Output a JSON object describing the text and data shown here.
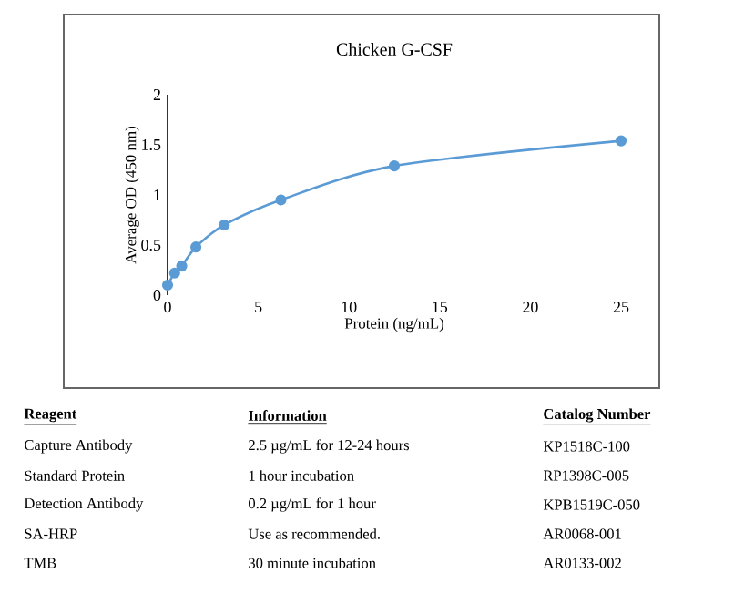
{
  "chart_data": {
    "type": "line",
    "title": "Chicken G-CSF",
    "xlabel": "Protein (ng/mL)",
    "ylabel": "Average OD (450 nm)",
    "series": [
      {
        "color": "#5b9bd5",
        "x": [
          0,
          0.39,
          0.78,
          1.56,
          3.125,
          6.25,
          12.5,
          25
        ],
        "values": [
          0.1,
          0.22,
          0.29,
          0.48,
          0.7,
          0.95,
          1.29,
          1.54
        ]
      }
    ],
    "xlim": [
      0,
      25
    ],
    "xticks": [
      0,
      5,
      10,
      15,
      20,
      25
    ],
    "ylim": [
      0,
      2
    ],
    "yticks": [
      0,
      0.5,
      1,
      1.5,
      2
    ],
    "marker": "circle",
    "grid": false,
    "annotations": [
      "Reagent",
      "Information",
      "Catalog Number",
      "Capture Antibody",
      "2.5 µg/mL for 12-24 hours",
      "KP1518C-100",
      "Standard Protein",
      "1 hour incubation",
      "RP1398C-005",
      "Detection Antibody",
      "0.2 µg/mL for 1 hour",
      "KPB1519C-050",
      "SA-HRP",
      "Use as recommended.",
      "AR0068-001",
      "TMB",
      "30 minute incubation",
      "AR0133-002"
    ]
  }
}
